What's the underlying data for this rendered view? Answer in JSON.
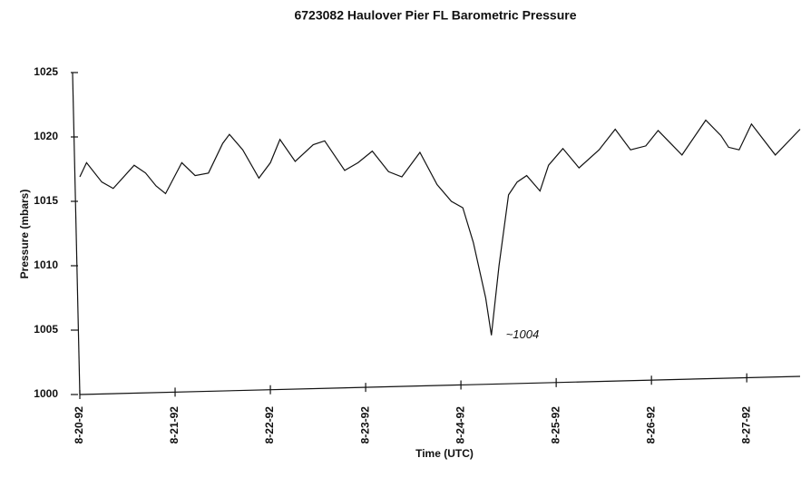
{
  "chart_data": {
    "type": "line",
    "title": "6723082  Haulover Pier  FL   Barometric Pressure",
    "y_label": "Pressure (mbars)",
    "x_label": "Time (UTC)",
    "annotation": "~1004",
    "x": [
      0,
      0.07,
      0.23,
      0.35,
      0.57,
      0.69,
      0.8,
      0.9,
      1.07,
      1.21,
      1.35,
      1.5,
      1.57,
      1.71,
      1.88,
      2.0,
      2.1,
      2.26,
      2.45,
      2.57,
      2.78,
      2.92,
      3.07,
      3.24,
      3.38,
      3.57,
      3.75,
      3.9,
      4.02,
      4.13,
      4.26,
      4.32,
      4.4,
      4.5,
      4.59,
      4.69,
      4.83,
      4.92,
      5.07,
      5.24,
      5.45,
      5.62,
      5.78,
      5.94,
      6.07,
      6.32,
      6.57,
      6.73,
      6.81,
      6.92,
      7.05,
      7.3,
      7.56
    ],
    "series": [
      {
        "name": "Barometric Pressure",
        "color": "#111111",
        "values": [
          1016.9,
          1018.0,
          1016.5,
          1016.0,
          1017.8,
          1017.2,
          1016.2,
          1015.6,
          1018.0,
          1017.0,
          1017.2,
          1019.5,
          1020.2,
          1019.0,
          1016.8,
          1018.0,
          1019.8,
          1018.1,
          1019.4,
          1019.7,
          1017.4,
          1018.0,
          1018.9,
          1017.3,
          1016.9,
          1018.8,
          1016.3,
          1015.0,
          1014.5,
          1011.8,
          1007.5,
          1004.6,
          1010.0,
          1015.5,
          1016.5,
          1017.0,
          1015.8,
          1017.8,
          1019.1,
          1017.6,
          1019.0,
          1020.6,
          1019.0,
          1019.3,
          1020.5,
          1018.6,
          1021.3,
          1020.1,
          1019.2,
          1019.0,
          1021.0,
          1018.6,
          1020.6
        ]
      }
    ],
    "xlim": [
      0,
      7.56
    ],
    "xticks": [
      {
        "value": 0,
        "label": "8-20-92"
      },
      {
        "value": 1,
        "label": "8-21-92"
      },
      {
        "value": 2,
        "label": "8-22-92"
      },
      {
        "value": 3,
        "label": "8-23-92"
      },
      {
        "value": 4,
        "label": "8-24-92"
      },
      {
        "value": 5,
        "label": "8-25-92"
      },
      {
        "value": 6,
        "label": "8-26-92"
      },
      {
        "value": 7,
        "label": "8-27-92"
      }
    ],
    "ylim": [
      1000,
      1025
    ],
    "yticks": [
      1000,
      1005,
      1010,
      1015,
      1020,
      1025
    ],
    "grid": false
  }
}
